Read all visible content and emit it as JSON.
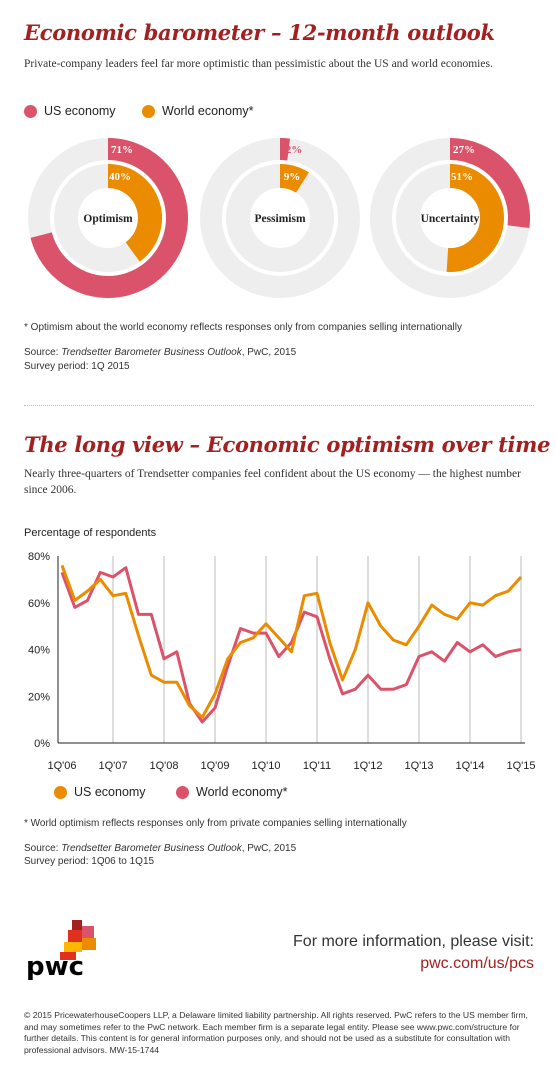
{
  "section1": {
    "title": "Economic barometer – 12-month outlook",
    "subtitle": "Private-company leaders feel far more optimistic than pessimistic about the US and world economies.",
    "legend": [
      {
        "label": "US economy",
        "color": "#db536a"
      },
      {
        "label": "World economy*",
        "color": "#eb8c00"
      }
    ],
    "footnote": "* Optimism about the world economy reflects responses only from companies selling internationally",
    "source_prefix": "Source: ",
    "source_title": "Trendsetter Barometer Business Outlook",
    "source_suffix": ", PwC, 2015",
    "survey_period": "Survey period: 1Q 2015"
  },
  "chart_data": [
    {
      "type": "pie",
      "subtype": "nested-donut",
      "charts": [
        {
          "label": "Optimism",
          "us": 71,
          "world": 40,
          "us_label": "71%",
          "world_label": "40%"
        },
        {
          "label": "Pessimism",
          "us": 2,
          "world": 9,
          "us_label": "2%",
          "world_label": "9%"
        },
        {
          "label": "Uncertainty",
          "us": 27,
          "world": 51,
          "us_label": "27%",
          "world_label": "51%"
        }
      ],
      "series_colors": {
        "us": "#db536a",
        "world": "#eb8c00",
        "track": "#eeeeee"
      }
    },
    {
      "type": "line",
      "title": "The long view – Economic optimism over time",
      "ylabel": "Percentage of respondents",
      "ylim": [
        0,
        80
      ],
      "yticks": [
        "0%",
        "20%",
        "40%",
        "60%",
        "80%"
      ],
      "xticks": [
        "1Q'06",
        "1Q'07",
        "1Q'08",
        "1Q'09",
        "1Q'10",
        "1Q'11",
        "1Q'12",
        "1Q'13",
        "1Q'14",
        "1Q'15"
      ],
      "grid": "vertical",
      "legend": "bottom",
      "series": [
        {
          "name": "US economy",
          "color": "#eb8c00",
          "values": [
            76,
            61,
            65,
            70,
            63,
            64,
            46,
            29,
            26,
            26,
            16,
            11,
            21,
            36,
            43,
            45,
            51,
            45,
            39,
            63,
            64,
            43,
            27,
            40,
            60,
            50,
            44,
            42,
            50,
            59,
            55,
            53,
            60,
            59,
            63,
            65,
            71
          ]
        },
        {
          "name": "World economy*",
          "color": "#db536a",
          "values": [
            73,
            58,
            61,
            73,
            71,
            75,
            55,
            55,
            36,
            39,
            17,
            9,
            15,
            33,
            49,
            47,
            47,
            37,
            43,
            56,
            54,
            36,
            21,
            23,
            29,
            23,
            23,
            25,
            37,
            39,
            35,
            43,
            39,
            42,
            37,
            39,
            40
          ]
        }
      ]
    }
  ],
  "section2": {
    "title": "The long view – Economic optimism over time",
    "subtitle": "Nearly three-quarters of Trendsetter companies feel confident about the US economy — the highest number since 2006.",
    "ylabel": "Percentage of respondents",
    "legend": [
      {
        "label": "US economy",
        "color": "#eb8c00"
      },
      {
        "label": "World economy*",
        "color": "#db536a"
      }
    ],
    "footnote": "* World optimism reflects responses only from private companies selling internationally",
    "source_prefix": "Source: ",
    "source_title": "Trendsetter Barometer Business Outlook",
    "source_suffix": ", PwC, 2015",
    "survey_period": "Survey period: 1Q06 to 1Q15"
  },
  "footer": {
    "logo_text": "pwc",
    "info_line1": "For more information, please visit:",
    "info_line2": "pwc.com/us/pcs",
    "legal": "© 2015 PricewaterhouseCoopers LLP, a Delaware limited liability partnership. All rights reserved. PwC refers to the US member firm, and may sometimes refer to the PwC network. Each member firm is a separate legal entity. Please see www.pwc.com/structure for further details. This content is for general information purposes only, and should not be used as a substitute for consultation with professional advisors. MW-15-1744"
  }
}
